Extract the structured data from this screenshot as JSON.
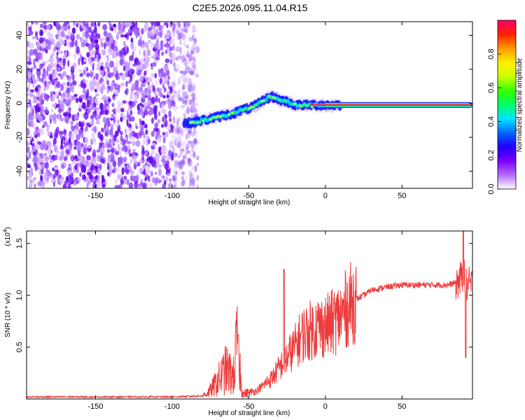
{
  "chart_data": [
    {
      "type": "heatmap",
      "title": "C2E5.2026.095.11.04.R15",
      "xlabel": "Height of straight line (km)",
      "ylabel": "Frequency (Hz)",
      "xlim": [
        -195,
        96
      ],
      "ylim": [
        -50,
        48
      ],
      "xticks": [
        -150,
        -100,
        -50,
        0,
        50
      ],
      "yticks": [
        -40,
        -20,
        0,
        20,
        40
      ],
      "noise_region_x": [
        -195,
        -86
      ],
      "ridge": {
        "x": [
          -92,
          -85,
          -80,
          -75,
          -70,
          -65,
          -60,
          -55,
          -50,
          -45,
          -40,
          -35,
          -30,
          -25,
          -20,
          -15,
          -10,
          -5,
          0,
          10,
          20,
          30,
          40,
          50,
          60,
          70,
          80,
          90,
          95
        ],
        "y": [
          -12,
          -11,
          -10,
          -9,
          -8,
          -7,
          -6,
          -4,
          -3,
          -1,
          2,
          4,
          2,
          1,
          -1,
          -1,
          -1,
          -1,
          -1,
          -1,
          -1,
          -1,
          -1,
          -1,
          -1,
          -1,
          -1,
          -1,
          -1
        ]
      },
      "colorbar": {
        "label": "Normalized spectral amplitude",
        "range": [
          0.0,
          1.0
        ],
        "ticks": [
          "0.0",
          "0.2",
          "0.4",
          "0.6",
          "0.8"
        ]
      },
      "colorbar_colors": [
        "#ffffff",
        "#b36bff",
        "#7a00ff",
        "#2200ff",
        "#0066ff",
        "#00e5ff",
        "#00ff66",
        "#33ff00",
        "#ccff00",
        "#ffee00",
        "#ff9900",
        "#ff2200",
        "#ff0066"
      ]
    },
    {
      "type": "line",
      "title": "",
      "xlabel": "Height of straight line (km)",
      "ylabel": "SNR (10 * v/v)",
      "scale_label": "(x10^4)",
      "xlim": [
        -195,
        96
      ],
      "ylim": [
        0,
        1.62
      ],
      "xticks": [
        -150,
        -100,
        -50,
        0,
        50
      ],
      "yticks": [
        0.5,
        1.0,
        1.5
      ],
      "ytick_labels": [
        "0.5",
        "1.0",
        "1.5"
      ],
      "color": "#ee3b3b",
      "series": [
        {
          "name": "SNR",
          "x": [
            -195,
            -150,
            -100,
            -80,
            -75,
            -70,
            -65,
            -60,
            -57,
            -55,
            -53,
            -50,
            -45,
            -40,
            -35,
            -30,
            -25,
            -20,
            -15,
            -10,
            -5,
            0,
            5,
            10,
            15,
            20,
            25,
            30,
            40,
            50,
            60,
            70,
            80,
            85,
            88,
            90,
            92,
            95
          ],
          "y": [
            0.02,
            0.02,
            0.02,
            0.03,
            0.08,
            0.18,
            0.28,
            0.22,
            0.62,
            0.12,
            0.05,
            0.06,
            0.08,
            0.14,
            0.2,
            0.3,
            0.4,
            0.5,
            0.62,
            0.66,
            0.7,
            0.7,
            0.74,
            0.8,
            0.9,
            0.96,
            1.0,
            1.05,
            1.08,
            1.1,
            1.1,
            1.1,
            1.1,
            1.12,
            1.15,
            1.2,
            1.1,
            1.1
          ]
        }
      ]
    }
  ]
}
